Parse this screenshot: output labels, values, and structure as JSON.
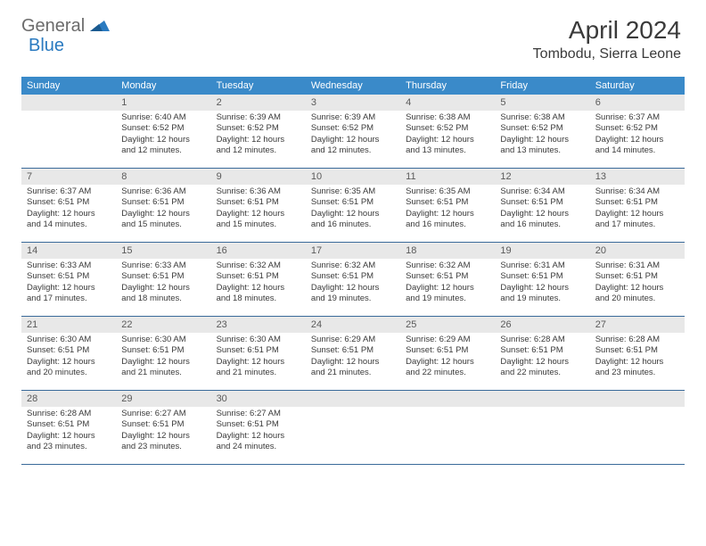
{
  "logo": {
    "part1": "General",
    "part2": "Blue"
  },
  "title": "April 2024",
  "location": "Tombodu, Sierra Leone",
  "colors": {
    "header_bg": "#3a8ac9",
    "header_text": "#ffffff",
    "daynum_bg": "#e8e8e8",
    "text": "#3a3a3a",
    "logo_gray": "#6b6b6b",
    "logo_blue": "#2a7ac0",
    "border": "#3a6a9a"
  },
  "day_names": [
    "Sunday",
    "Monday",
    "Tuesday",
    "Wednesday",
    "Thursday",
    "Friday",
    "Saturday"
  ],
  "weeks": [
    [
      {
        "num": "",
        "sunrise": "",
        "sunset": "",
        "daylight": ""
      },
      {
        "num": "1",
        "sunrise": "Sunrise: 6:40 AM",
        "sunset": "Sunset: 6:52 PM",
        "daylight": "Daylight: 12 hours and 12 minutes."
      },
      {
        "num": "2",
        "sunrise": "Sunrise: 6:39 AM",
        "sunset": "Sunset: 6:52 PM",
        "daylight": "Daylight: 12 hours and 12 minutes."
      },
      {
        "num": "3",
        "sunrise": "Sunrise: 6:39 AM",
        "sunset": "Sunset: 6:52 PM",
        "daylight": "Daylight: 12 hours and 12 minutes."
      },
      {
        "num": "4",
        "sunrise": "Sunrise: 6:38 AM",
        "sunset": "Sunset: 6:52 PM",
        "daylight": "Daylight: 12 hours and 13 minutes."
      },
      {
        "num": "5",
        "sunrise": "Sunrise: 6:38 AM",
        "sunset": "Sunset: 6:52 PM",
        "daylight": "Daylight: 12 hours and 13 minutes."
      },
      {
        "num": "6",
        "sunrise": "Sunrise: 6:37 AM",
        "sunset": "Sunset: 6:52 PM",
        "daylight": "Daylight: 12 hours and 14 minutes."
      }
    ],
    [
      {
        "num": "7",
        "sunrise": "Sunrise: 6:37 AM",
        "sunset": "Sunset: 6:51 PM",
        "daylight": "Daylight: 12 hours and 14 minutes."
      },
      {
        "num": "8",
        "sunrise": "Sunrise: 6:36 AM",
        "sunset": "Sunset: 6:51 PM",
        "daylight": "Daylight: 12 hours and 15 minutes."
      },
      {
        "num": "9",
        "sunrise": "Sunrise: 6:36 AM",
        "sunset": "Sunset: 6:51 PM",
        "daylight": "Daylight: 12 hours and 15 minutes."
      },
      {
        "num": "10",
        "sunrise": "Sunrise: 6:35 AM",
        "sunset": "Sunset: 6:51 PM",
        "daylight": "Daylight: 12 hours and 16 minutes."
      },
      {
        "num": "11",
        "sunrise": "Sunrise: 6:35 AM",
        "sunset": "Sunset: 6:51 PM",
        "daylight": "Daylight: 12 hours and 16 minutes."
      },
      {
        "num": "12",
        "sunrise": "Sunrise: 6:34 AM",
        "sunset": "Sunset: 6:51 PM",
        "daylight": "Daylight: 12 hours and 16 minutes."
      },
      {
        "num": "13",
        "sunrise": "Sunrise: 6:34 AM",
        "sunset": "Sunset: 6:51 PM",
        "daylight": "Daylight: 12 hours and 17 minutes."
      }
    ],
    [
      {
        "num": "14",
        "sunrise": "Sunrise: 6:33 AM",
        "sunset": "Sunset: 6:51 PM",
        "daylight": "Daylight: 12 hours and 17 minutes."
      },
      {
        "num": "15",
        "sunrise": "Sunrise: 6:33 AM",
        "sunset": "Sunset: 6:51 PM",
        "daylight": "Daylight: 12 hours and 18 minutes."
      },
      {
        "num": "16",
        "sunrise": "Sunrise: 6:32 AM",
        "sunset": "Sunset: 6:51 PM",
        "daylight": "Daylight: 12 hours and 18 minutes."
      },
      {
        "num": "17",
        "sunrise": "Sunrise: 6:32 AM",
        "sunset": "Sunset: 6:51 PM",
        "daylight": "Daylight: 12 hours and 19 minutes."
      },
      {
        "num": "18",
        "sunrise": "Sunrise: 6:32 AM",
        "sunset": "Sunset: 6:51 PM",
        "daylight": "Daylight: 12 hours and 19 minutes."
      },
      {
        "num": "19",
        "sunrise": "Sunrise: 6:31 AM",
        "sunset": "Sunset: 6:51 PM",
        "daylight": "Daylight: 12 hours and 19 minutes."
      },
      {
        "num": "20",
        "sunrise": "Sunrise: 6:31 AM",
        "sunset": "Sunset: 6:51 PM",
        "daylight": "Daylight: 12 hours and 20 minutes."
      }
    ],
    [
      {
        "num": "21",
        "sunrise": "Sunrise: 6:30 AM",
        "sunset": "Sunset: 6:51 PM",
        "daylight": "Daylight: 12 hours and 20 minutes."
      },
      {
        "num": "22",
        "sunrise": "Sunrise: 6:30 AM",
        "sunset": "Sunset: 6:51 PM",
        "daylight": "Daylight: 12 hours and 21 minutes."
      },
      {
        "num": "23",
        "sunrise": "Sunrise: 6:30 AM",
        "sunset": "Sunset: 6:51 PM",
        "daylight": "Daylight: 12 hours and 21 minutes."
      },
      {
        "num": "24",
        "sunrise": "Sunrise: 6:29 AM",
        "sunset": "Sunset: 6:51 PM",
        "daylight": "Daylight: 12 hours and 21 minutes."
      },
      {
        "num": "25",
        "sunrise": "Sunrise: 6:29 AM",
        "sunset": "Sunset: 6:51 PM",
        "daylight": "Daylight: 12 hours and 22 minutes."
      },
      {
        "num": "26",
        "sunrise": "Sunrise: 6:28 AM",
        "sunset": "Sunset: 6:51 PM",
        "daylight": "Daylight: 12 hours and 22 minutes."
      },
      {
        "num": "27",
        "sunrise": "Sunrise: 6:28 AM",
        "sunset": "Sunset: 6:51 PM",
        "daylight": "Daylight: 12 hours and 23 minutes."
      }
    ],
    [
      {
        "num": "28",
        "sunrise": "Sunrise: 6:28 AM",
        "sunset": "Sunset: 6:51 PM",
        "daylight": "Daylight: 12 hours and 23 minutes."
      },
      {
        "num": "29",
        "sunrise": "Sunrise: 6:27 AM",
        "sunset": "Sunset: 6:51 PM",
        "daylight": "Daylight: 12 hours and 23 minutes."
      },
      {
        "num": "30",
        "sunrise": "Sunrise: 6:27 AM",
        "sunset": "Sunset: 6:51 PM",
        "daylight": "Daylight: 12 hours and 24 minutes."
      },
      {
        "num": "",
        "sunrise": "",
        "sunset": "",
        "daylight": ""
      },
      {
        "num": "",
        "sunrise": "",
        "sunset": "",
        "daylight": ""
      },
      {
        "num": "",
        "sunrise": "",
        "sunset": "",
        "daylight": ""
      },
      {
        "num": "",
        "sunrise": "",
        "sunset": "",
        "daylight": ""
      }
    ]
  ]
}
